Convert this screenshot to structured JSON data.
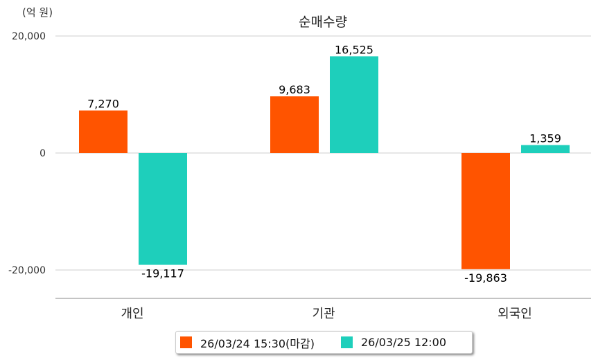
{
  "chart_data": {
    "type": "bar",
    "title": "순매수량",
    "ylabel": "(억 원)",
    "xlabel": "",
    "categories": [
      "개인",
      "기관",
      "외국인"
    ],
    "series": [
      {
        "name": "26/03/24 15:30(마감)",
        "color": "#ff5400",
        "values": [
          7270,
          9683,
          -19863
        ],
        "labels": [
          "7,270",
          "9,683",
          "-19,863"
        ]
      },
      {
        "name": "26/03/25 12:00",
        "color": "#1ecfbb",
        "values": [
          -19117,
          16525,
          1359
        ],
        "labels": [
          "-19,117",
          "16,525",
          "1,359"
        ]
      }
    ],
    "ylim": [
      -20000,
      20000
    ],
    "yticks": [
      20000,
      0,
      -20000
    ],
    "ytick_labels": [
      "20,000",
      "0",
      "-20,000"
    ],
    "grid": true,
    "legend": "bottom"
  }
}
